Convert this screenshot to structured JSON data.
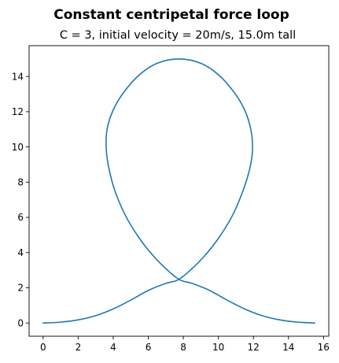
{
  "chart_data": {
    "type": "line",
    "title": "Constant centripetal force loop",
    "subtitle": "C = 3, initial velocity = 20m/s, 15.0m tall",
    "xlabel": "",
    "ylabel": "",
    "xlim": [
      -0.8,
      16.3
    ],
    "ylim": [
      -0.75,
      15.75
    ],
    "xticks": [
      0,
      2,
      4,
      6,
      8,
      10,
      12,
      14,
      16
    ],
    "yticks": [
      0,
      2,
      4,
      6,
      8,
      10,
      12,
      14
    ],
    "grid": false,
    "legend": "none",
    "series": [
      {
        "color": "#1f77b4",
        "points": [
          [
            0.0,
            0.0
          ],
          [
            1.0,
            0.05
          ],
          [
            2.0,
            0.18
          ],
          [
            3.0,
            0.42
          ],
          [
            4.0,
            0.8
          ],
          [
            5.0,
            1.3
          ],
          [
            6.0,
            1.85
          ],
          [
            7.0,
            2.25
          ],
          [
            7.7,
            2.45
          ],
          [
            8.4,
            3.0
          ],
          [
            9.2,
            3.8
          ],
          [
            10.0,
            4.8
          ],
          [
            10.8,
            6.1
          ],
          [
            11.4,
            7.5
          ],
          [
            11.8,
            8.8
          ],
          [
            11.95,
            9.9
          ],
          [
            11.85,
            11.0
          ],
          [
            11.5,
            12.1
          ],
          [
            10.9,
            13.1
          ],
          [
            10.0,
            14.1
          ],
          [
            9.0,
            14.75
          ],
          [
            7.75,
            15.0
          ],
          [
            6.5,
            14.75
          ],
          [
            5.5,
            14.1
          ],
          [
            4.6,
            13.1
          ],
          [
            4.0,
            12.1
          ],
          [
            3.65,
            11.0
          ],
          [
            3.6,
            9.9
          ],
          [
            3.75,
            8.8
          ],
          [
            4.1,
            7.5
          ],
          [
            4.7,
            6.1
          ],
          [
            5.5,
            4.8
          ],
          [
            6.3,
            3.8
          ],
          [
            7.1,
            3.0
          ],
          [
            7.8,
            2.45
          ],
          [
            8.5,
            2.25
          ],
          [
            9.5,
            1.85
          ],
          [
            10.5,
            1.3
          ],
          [
            11.5,
            0.8
          ],
          [
            12.5,
            0.42
          ],
          [
            13.5,
            0.18
          ],
          [
            14.5,
            0.05
          ],
          [
            15.5,
            0.0
          ]
        ]
      }
    ]
  }
}
